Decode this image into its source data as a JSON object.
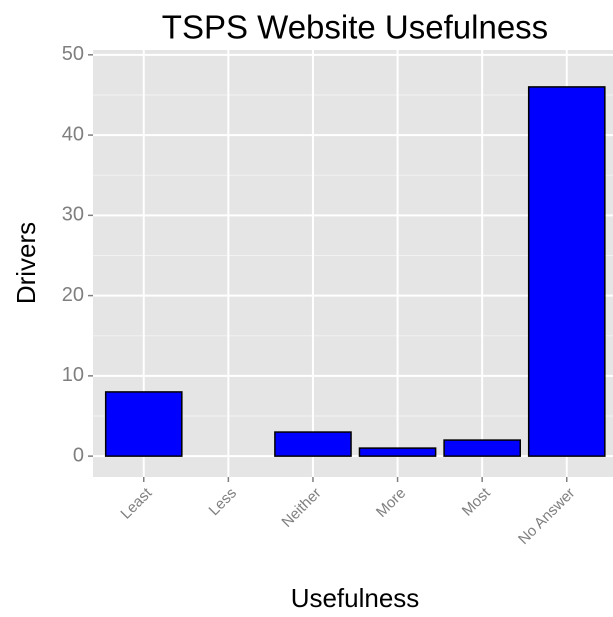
{
  "chart_data": {
    "type": "bar",
    "title": "TSPS Website Usefulness",
    "x_label": "Usefulness",
    "y_label": "Drivers",
    "categories": [
      "Least",
      "Less",
      "Neither",
      "More",
      "Most",
      "No Answer"
    ],
    "values": [
      8,
      0,
      3,
      1,
      2,
      46
    ],
    "color": "#0000ff",
    "ylim": [
      -2.6,
      50.6
    ],
    "yticks": [
      0,
      10,
      20,
      30,
      40,
      50
    ],
    "grid": true
  }
}
